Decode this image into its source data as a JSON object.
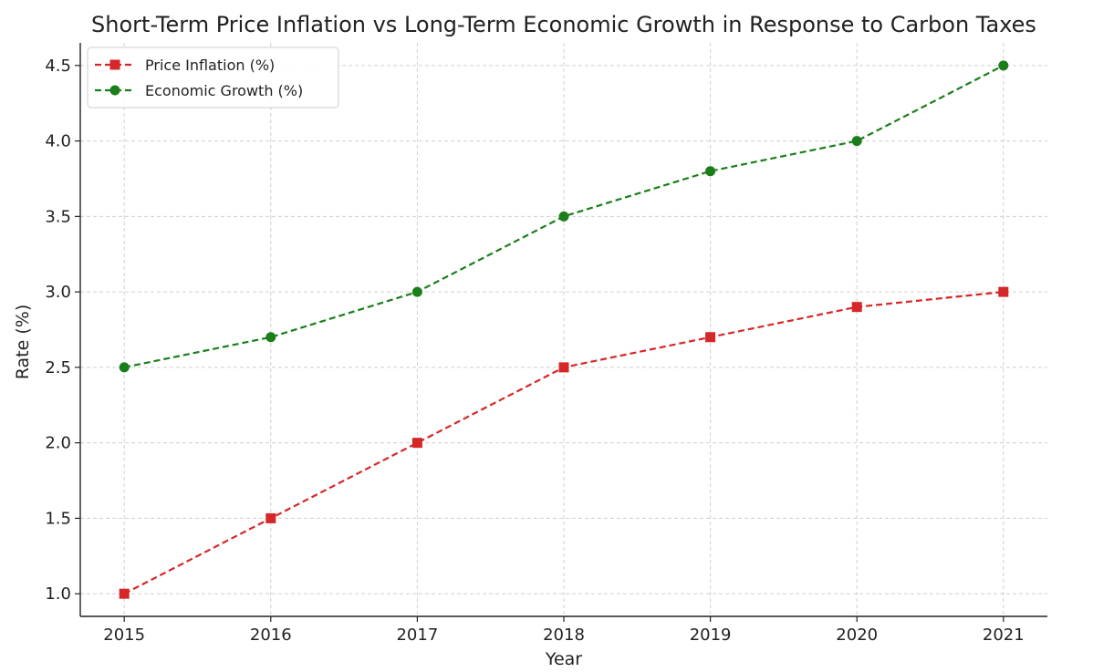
{
  "chart_data": {
    "type": "line",
    "title": "Short-Term Price Inflation vs Long-Term Economic Growth in Response to Carbon Taxes",
    "xlabel": "Year",
    "ylabel": "Rate (%)",
    "x": [
      2015,
      2016,
      2017,
      2018,
      2019,
      2020,
      2021
    ],
    "x_tick_labels": [
      "2015",
      "2016",
      "2017",
      "2018",
      "2019",
      "2020",
      "2021"
    ],
    "y_ticks": [
      1.0,
      1.5,
      2.0,
      2.5,
      3.0,
      3.5,
      4.0,
      4.5
    ],
    "y_tick_labels": [
      "1.0",
      "1.5",
      "2.0",
      "2.5",
      "3.0",
      "3.5",
      "4.0",
      "4.5"
    ],
    "ylim": [
      0.85,
      4.65
    ],
    "xlim": [
      2014.7,
      2021.3
    ],
    "grid": true,
    "legend_position": "top-left",
    "series": [
      {
        "name": "Price Inflation (%)",
        "values": [
          1.0,
          1.5,
          2.0,
          2.5,
          2.7,
          2.9,
          3.0
        ],
        "color": "#d62728",
        "marker": "square",
        "line_style": "dashed"
      },
      {
        "name": "Economic Growth (%)",
        "values": [
          2.5,
          2.7,
          3.0,
          3.5,
          3.8,
          4.0,
          4.5
        ],
        "color": "#1a7f1a",
        "marker": "circle",
        "line_style": "dashed"
      }
    ]
  }
}
